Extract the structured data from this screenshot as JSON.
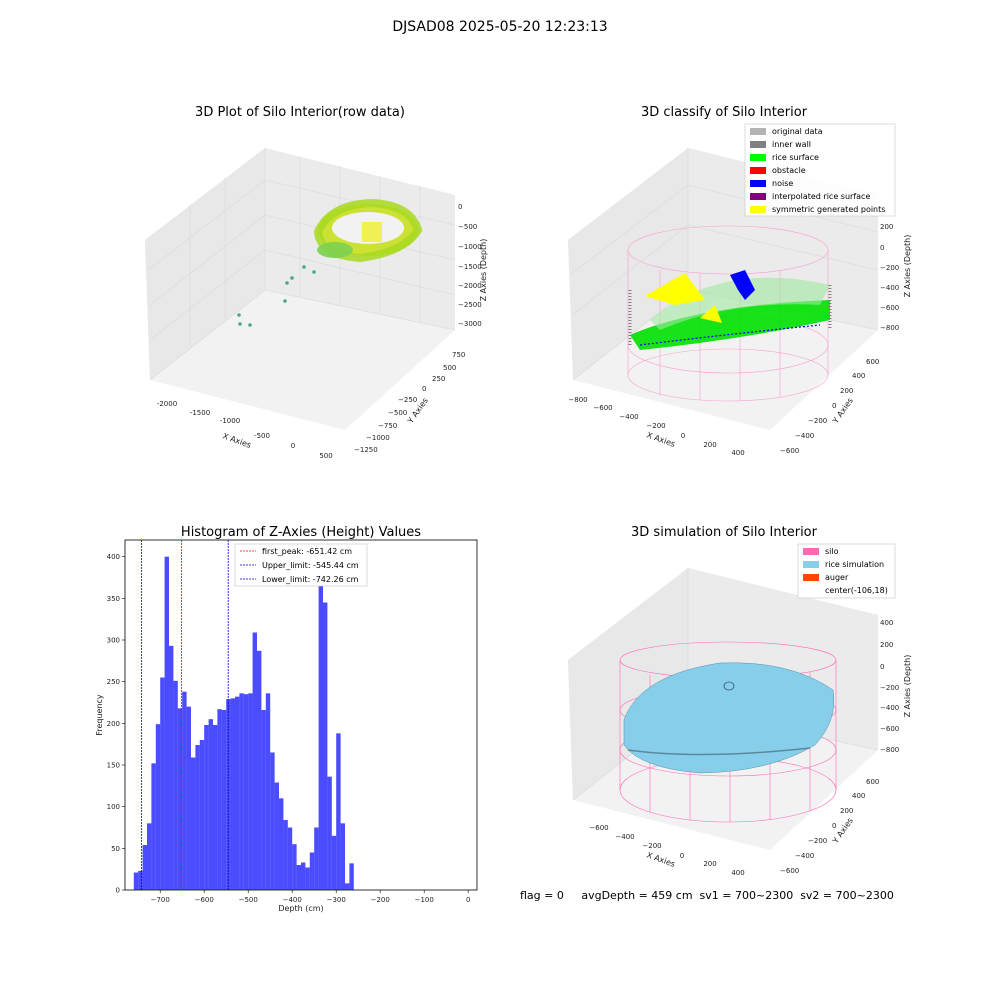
{
  "figure_title": "DJSAD08 2025-05-20 12:23:13",
  "footer_text": "flag = 0     avgDepth = 459 cm  sv1 = 700~2300  sv2 = 700~2300",
  "chart_data": [
    {
      "type": "scatter3d",
      "title": "3D Plot of Silo Interior(row data)",
      "xlabel": "X Axies",
      "ylabel": "Y Axies",
      "zlabel": "Z Axies (Depth)",
      "x_ticks": [
        "-2000",
        "-1500",
        "-1000",
        "-500",
        "0",
        "500"
      ],
      "y_ticks": [
        "750",
        "500",
        "250",
        "0",
        "−250",
        "−500",
        "−750",
        "−1000",
        "−1250"
      ],
      "z_ticks": [
        "0",
        "−500",
        "−1000",
        "−1500",
        "−2000",
        "−2500",
        "−3000"
      ],
      "grid": true
    },
    {
      "type": "scatter3d",
      "title": "3D classify of Silo Interior",
      "xlabel": "X Axies",
      "ylabel": "Y Axies",
      "zlabel": "Z Axies (Depth)",
      "x_ticks": [
        "−800",
        "−600",
        "−400",
        "−200",
        "0",
        "200",
        "400"
      ],
      "y_ticks": [
        "600",
        "400",
        "200",
        "0",
        "−200",
        "−400",
        "−600"
      ],
      "z_ticks": [
        "200",
        "0",
        "−200",
        "−400",
        "−600",
        "−800"
      ],
      "legend_position": "top-right",
      "legend": [
        {
          "label": "original data",
          "color": "#b3b3b3"
        },
        {
          "label": "inner wall",
          "color": "#808080"
        },
        {
          "label": "rice surface",
          "color": "#00ff00"
        },
        {
          "label": "obstacle",
          "color": "#ff0000"
        },
        {
          "label": "noise",
          "color": "#0000ff"
        },
        {
          "label": "interpolated rice surface",
          "color": "#800080"
        },
        {
          "label": "symmetric generated points",
          "color": "#ffff00"
        }
      ],
      "grid": true
    },
    {
      "type": "bar",
      "title": "Histogram of Z-Axies (Height) Values",
      "xlabel": "Depth (cm)",
      "ylabel": "Frequency",
      "bar_color": "#0000ff",
      "bin_width": 10,
      "bin_start": -760,
      "values": [
        21,
        23,
        54,
        80,
        152,
        199,
        255,
        400,
        293,
        251,
        218,
        238,
        220,
        159,
        174,
        180,
        198,
        205,
        198,
        217,
        216,
        229,
        230,
        232,
        236,
        235,
        236,
        309,
        287,
        216,
        236,
        165,
        129,
        110,
        84,
        75,
        55,
        30,
        33,
        27,
        45,
        75,
        377,
        345,
        136,
        65,
        188,
        80,
        8,
        32
      ],
      "xlim": [
        -780,
        20
      ],
      "ylim": [
        0,
        420
      ],
      "x_ticks": [
        -700,
        -600,
        -500,
        -400,
        -300,
        -200,
        -100,
        0
      ],
      "x_tick_labels": [
        "−700",
        "−600",
        "−500",
        "−400",
        "−300",
        "−200",
        "−100",
        "0"
      ],
      "y_ticks": [
        0,
        50,
        100,
        150,
        200,
        250,
        300,
        350,
        400
      ],
      "vlines": [
        {
          "x": -651.42,
          "color": "#ff0000",
          "label": "first_peak: -651.42 cm"
        },
        {
          "x": -545.44,
          "color": "#0000cc",
          "label": "Upper_limit: -545.44 cm"
        },
        {
          "x": -742.26,
          "color": "#0000cc",
          "label": "Lower_limit: -742.26 cm"
        }
      ],
      "legend_position": "top-center",
      "grid": false
    },
    {
      "type": "surface3d",
      "title": "3D simulation of Silo Interior",
      "xlabel": "X Axies",
      "ylabel": "Y Axies",
      "zlabel": "Z Axies (Depth)",
      "x_ticks": [
        "−600",
        "−400",
        "−200",
        "0",
        "200",
        "400"
      ],
      "y_ticks": [
        "600",
        "400",
        "200",
        "0",
        "−200",
        "−400",
        "−600"
      ],
      "z_ticks": [
        "400",
        "200",
        "0",
        "−200",
        "−400",
        "−600",
        "−800"
      ],
      "legend_position": "top-right",
      "legend": [
        {
          "label": "silo",
          "color": "#ff69b4"
        },
        {
          "label": "rice simulation",
          "color": "#87ceeb"
        },
        {
          "label": "auger",
          "color": "#ff4500"
        },
        {
          "label": "center(-106,18)",
          "color": ""
        }
      ],
      "grid": true
    }
  ]
}
